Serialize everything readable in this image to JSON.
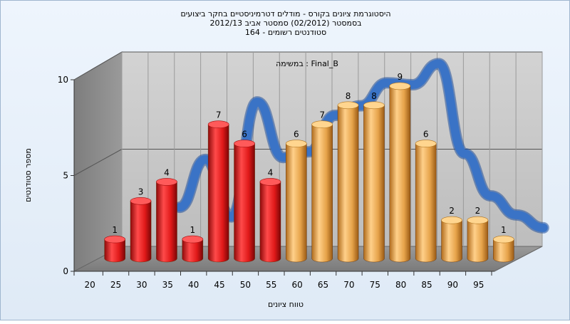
{
  "chart_data": {
    "type": "bar",
    "title_lines": [
      "היסטוגרמת ציונים בקורס - מודלים דטרמיניסטיים בחקר ביצועים",
      "בסמסטר  (02/2012)  סמסטר אביב 2012/13",
      "סטודנטים רשומים - 164"
    ],
    "subtitle": "במשימה : Final_B",
    "xlabel": "טווח ציונים",
    "ylabel": "מספר סטודנטים",
    "categories": [
      "20",
      "25",
      "30",
      "35",
      "40",
      "45",
      "50",
      "55",
      "60",
      "65",
      "70",
      "75",
      "80",
      "85",
      "90",
      "95"
    ],
    "values": [
      1,
      3,
      4,
      1,
      7,
      6,
      4,
      6,
      7,
      8,
      8,
      9,
      6,
      2,
      2,
      1
    ],
    "bar_colors": [
      "#e21f1f",
      "#e21f1f",
      "#e21f1f",
      "#e21f1f",
      "#e21f1f",
      "#e21f1f",
      "#e21f1f",
      "#e6a34a",
      "#e6a34a",
      "#e6a34a",
      "#e6a34a",
      "#e6a34a",
      "#e6a34a",
      "#e6a34a",
      "#e6a34a",
      "#e6a34a"
    ],
    "curve_color": "#3a73c6",
    "y_ticks": [
      0,
      5,
      10
    ],
    "ylim": [
      0,
      10
    ],
    "grid": true,
    "curve_values": [
      null,
      null,
      2.3,
      4.8,
      1.8,
      7.8,
      4.9,
      5.2,
      7.1,
      7.6,
      8.8,
      8.7,
      9.8,
      5.1,
      2.9,
      1.9
    ]
  }
}
